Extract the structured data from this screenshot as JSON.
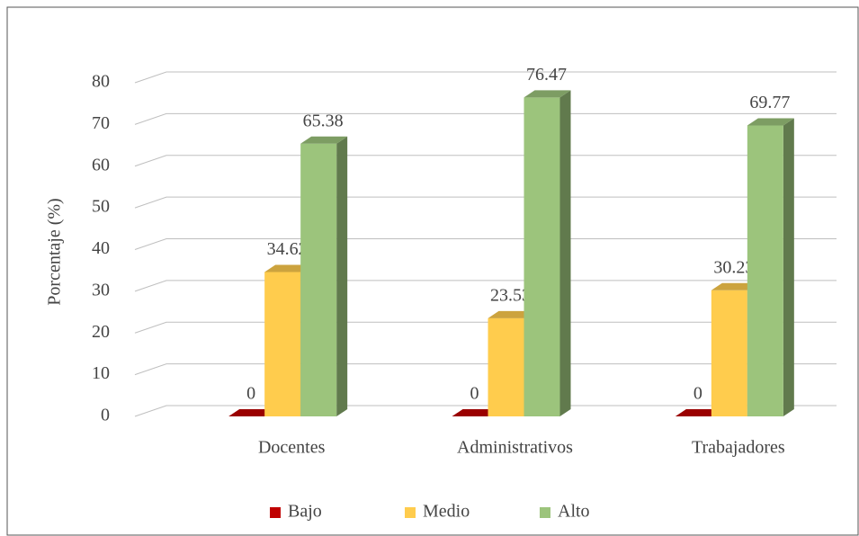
{
  "chart_data": {
    "type": "bar3d",
    "y_label": "Porcentaje (%)",
    "categories": [
      "Docentes",
      "Administrativos",
      "Trabajadores"
    ],
    "series": [
      {
        "name": "Bajo",
        "color": "#c00000",
        "values": [
          0,
          0,
          0
        ]
      },
      {
        "name": "Medio",
        "color": "#ffcc4d",
        "values": [
          34.62,
          23.53,
          30.23
        ]
      },
      {
        "name": "Alto",
        "color": "#9cc47c",
        "values": [
          65.38,
          76.47,
          69.77
        ]
      }
    ],
    "ylim": [
      0,
      80
    ],
    "yticks": [
      0,
      10,
      20,
      30,
      40,
      50,
      60,
      70,
      80
    ],
    "grid": true,
    "legend": "bottom"
  }
}
